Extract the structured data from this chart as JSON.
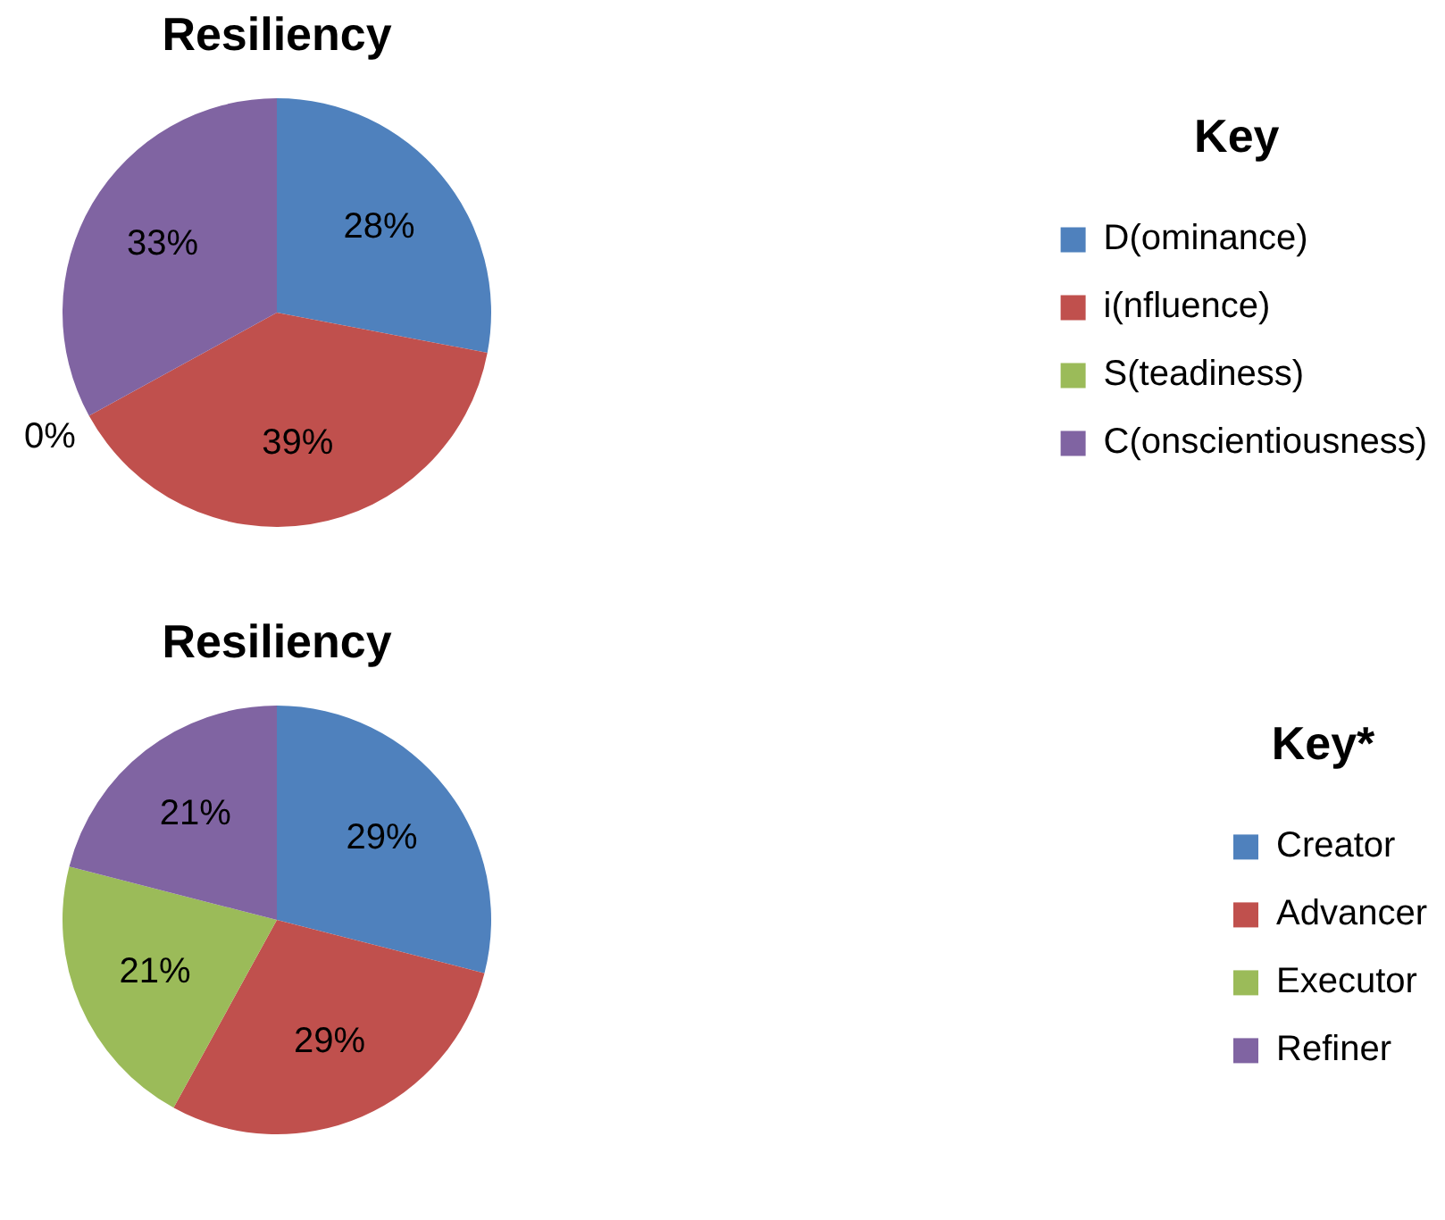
{
  "chart_data": [
    {
      "type": "pie",
      "title": "Resiliency",
      "legend_title": "Key",
      "categories": [
        "D(ominance)",
        "i(nfluence)",
        "S(teadiness)",
        "C(onscientiousness)"
      ],
      "values": [
        28,
        39,
        0,
        33
      ],
      "value_labels": [
        "28%",
        "39%",
        "0%",
        "33%"
      ],
      "colors": [
        "#4f81bd",
        "#c0504d",
        "#9bbb59",
        "#8064a2"
      ],
      "legend": "right"
    },
    {
      "type": "pie",
      "title": "Resiliency",
      "legend_title": "Key*",
      "categories": [
        "Creator",
        "Advancer",
        "Executor",
        "Refiner"
      ],
      "values": [
        29,
        29,
        21,
        21
      ],
      "value_labels": [
        "29%",
        "29%",
        "21%",
        "21%"
      ],
      "colors": [
        "#4f81bd",
        "#c0504d",
        "#9bbb59",
        "#8064a2"
      ],
      "legend": "right"
    }
  ]
}
